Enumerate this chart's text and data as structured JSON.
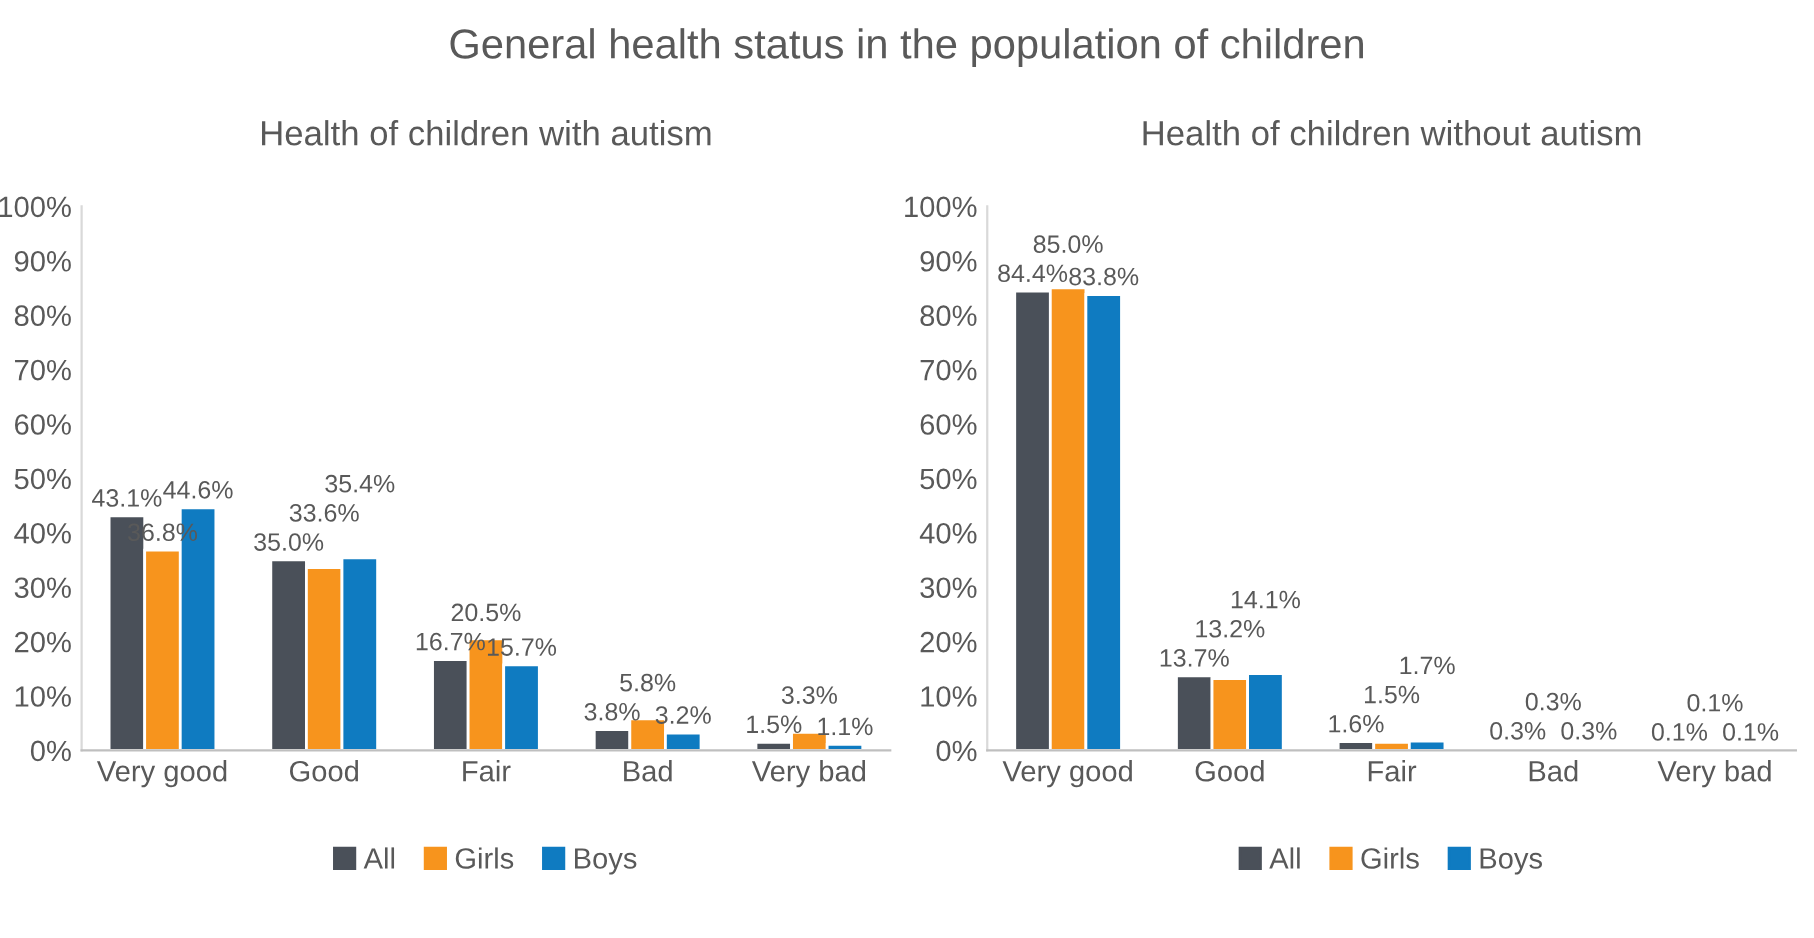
{
  "chart_data": [
    {
      "type": "bar",
      "title": "Health of children with autism",
      "annotations": [
        "General health status in the population of children"
      ],
      "categories": [
        "Very good",
        "Good",
        "Fair",
        "Bad",
        "Very bad"
      ],
      "series": [
        {
          "name": "All",
          "color": "#4a5059",
          "values": [
            43.1,
            35.0,
            16.7,
            3.8,
            1.5
          ],
          "value_labels": [
            "43.1%",
            "35.0%",
            "16.7%",
            "3.8%",
            "1.5%"
          ]
        },
        {
          "name": "Girls",
          "color": "#f7941d",
          "values": [
            36.8,
            33.6,
            20.5,
            5.8,
            3.3
          ],
          "value_labels": [
            "36.8%",
            "33.6%",
            "20.5%",
            "5.8%",
            "3.3%"
          ]
        },
        {
          "name": "Boys",
          "color": "#0f7bc1",
          "values": [
            44.6,
            35.4,
            15.7,
            3.2,
            1.1
          ],
          "value_labels": [
            "44.6%",
            "35.4%",
            "15.7%",
            "3.2%",
            "1.1%"
          ]
        }
      ],
      "ylim": [
        0,
        100
      ],
      "yticks": [
        {
          "value": 0,
          "label": "0%"
        },
        {
          "value": 10,
          "label": "10%"
        },
        {
          "value": 20,
          "label": "20%"
        },
        {
          "value": 30,
          "label": "30%"
        },
        {
          "value": 40,
          "label": "40%"
        },
        {
          "value": 50,
          "label": "50%"
        },
        {
          "value": 60,
          "label": "60%"
        },
        {
          "value": 70,
          "label": "70%"
        },
        {
          "value": 80,
          "label": "80%"
        },
        {
          "value": 90,
          "label": "90%"
        },
        {
          "value": 100,
          "label": "100%"
        }
      ],
      "legend": "bottom"
    },
    {
      "type": "bar",
      "title": "Health of children without autism",
      "categories": [
        "Very good",
        "Good",
        "Fair",
        "Bad",
        "Very bad"
      ],
      "series": [
        {
          "name": "All",
          "color": "#4a5059",
          "values": [
            84.4,
            13.7,
            1.6,
            0.3,
            0.1
          ],
          "value_labels": [
            "84.4%",
            "13.7%",
            "1.6%",
            "0.3%",
            "0.1%"
          ]
        },
        {
          "name": "Girls",
          "color": "#f7941d",
          "values": [
            85.0,
            13.2,
            1.5,
            0.3,
            0.1
          ],
          "value_labels": [
            "85.0%",
            "13.2%",
            "1.5%",
            "0.3%",
            "0.1%"
          ]
        },
        {
          "name": "Boys",
          "color": "#0f7bc1",
          "values": [
            83.8,
            14.1,
            1.7,
            0.3,
            0.1
          ],
          "value_labels": [
            "83.8%",
            "14.1%",
            "1.7%",
            "0.3%",
            "0.1%"
          ]
        }
      ],
      "ylim": [
        0,
        100
      ],
      "yticks": [
        {
          "value": 0,
          "label": "0%"
        },
        {
          "value": 10,
          "label": "10%"
        },
        {
          "value": 20,
          "label": "20%"
        },
        {
          "value": 30,
          "label": "30%"
        },
        {
          "value": 40,
          "label": "40%"
        },
        {
          "value": 50,
          "label": "50%"
        },
        {
          "value": 60,
          "label": "60%"
        },
        {
          "value": 70,
          "label": "70%"
        },
        {
          "value": 80,
          "label": "80%"
        },
        {
          "value": 90,
          "label": "90%"
        },
        {
          "value": 100,
          "label": "100%"
        }
      ],
      "legend": "bottom"
    }
  ]
}
